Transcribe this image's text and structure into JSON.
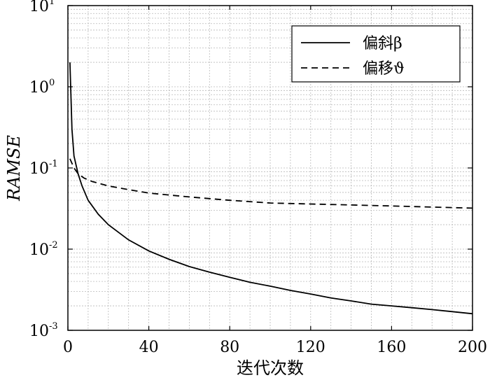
{
  "chart_data": {
    "type": "line",
    "xlabel": "迭代次数",
    "ylabel": "RAMSE",
    "xlim": [
      0,
      200
    ],
    "ylim": [
      0.001,
      10
    ],
    "yscale": "log",
    "x_ticks": [
      "0",
      "40",
      "80",
      "120",
      "160",
      "200"
    ],
    "y_ticks": [
      {
        "base": "10",
        "exp": "1"
      },
      {
        "base": "10",
        "exp": "0"
      },
      {
        "base": "10",
        "exp": "-1"
      },
      {
        "base": "10",
        "exp": "-2"
      },
      {
        "base": "10",
        "exp": "-3"
      }
    ],
    "grid": true,
    "legend_position": "top-right",
    "series": [
      {
        "name": "偏斜β",
        "style": "solid",
        "color": "#000000",
        "points": [
          [
            1,
            2.0
          ],
          [
            2,
            0.3
          ],
          [
            3,
            0.14
          ],
          [
            5,
            0.085
          ],
          [
            7,
            0.06
          ],
          [
            10,
            0.04
          ],
          [
            15,
            0.027
          ],
          [
            20,
            0.02
          ],
          [
            30,
            0.013
          ],
          [
            40,
            0.0095
          ],
          [
            50,
            0.0075
          ],
          [
            60,
            0.0061
          ],
          [
            70,
            0.0052
          ],
          [
            80,
            0.0045
          ],
          [
            90,
            0.0039
          ],
          [
            100,
            0.0035
          ],
          [
            110,
            0.0031
          ],
          [
            120,
            0.0028
          ],
          [
            130,
            0.0025
          ],
          [
            140,
            0.0023
          ],
          [
            150,
            0.0021
          ],
          [
            160,
            0.002
          ],
          [
            170,
            0.0019
          ],
          [
            180,
            0.0018
          ],
          [
            190,
            0.0017
          ],
          [
            200,
            0.0016
          ]
        ]
      },
      {
        "name": "偏移ϑ",
        "style": "dashed",
        "color": "#000000",
        "points": [
          [
            1,
            0.13
          ],
          [
            3,
            0.1
          ],
          [
            5,
            0.085
          ],
          [
            8,
            0.075
          ],
          [
            12,
            0.068
          ],
          [
            20,
            0.06
          ],
          [
            30,
            0.054
          ],
          [
            40,
            0.049
          ],
          [
            60,
            0.044
          ],
          [
            80,
            0.04
          ],
          [
            100,
            0.037
          ],
          [
            120,
            0.036
          ],
          [
            140,
            0.035
          ],
          [
            160,
            0.034
          ],
          [
            180,
            0.033
          ],
          [
            200,
            0.032
          ]
        ]
      }
    ]
  }
}
